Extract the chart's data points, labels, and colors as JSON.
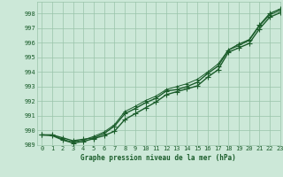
{
  "title": "Graphe pression niveau de la mer (hPa)",
  "xlim": [
    -0.5,
    23
  ],
  "ylim": [
    989,
    998.8
  ],
  "yticks": [
    989,
    990,
    991,
    992,
    993,
    994,
    995,
    996,
    997,
    998
  ],
  "xticks": [
    0,
    1,
    2,
    3,
    4,
    5,
    6,
    7,
    8,
    9,
    10,
    11,
    12,
    13,
    14,
    15,
    16,
    17,
    18,
    19,
    20,
    21,
    22,
    23
  ],
  "background_color": "#cce8d8",
  "grid_color": "#99c4aa",
  "line_color": "#1a5c2a",
  "series1_x": [
    0,
    1,
    2,
    3,
    4,
    5,
    6,
    7,
    8,
    9,
    10,
    11,
    12,
    13,
    14,
    15,
    16,
    17,
    18,
    19,
    20,
    21,
    22,
    23
  ],
  "series1_y": [
    989.7,
    989.7,
    989.5,
    989.3,
    989.4,
    989.5,
    989.8,
    990.3,
    991.15,
    991.5,
    991.9,
    992.2,
    992.7,
    992.8,
    993.0,
    993.3,
    993.9,
    994.4,
    995.5,
    995.9,
    996.2,
    997.2,
    998.0,
    998.3
  ],
  "series2_x": [
    0,
    1,
    2,
    3,
    4,
    5,
    6,
    7,
    8,
    9,
    10,
    11,
    12,
    13,
    14,
    15,
    16,
    17,
    18,
    19,
    20,
    21,
    22,
    23
  ],
  "series2_y": [
    989.7,
    989.65,
    989.35,
    989.15,
    989.25,
    989.45,
    989.65,
    989.95,
    990.75,
    991.15,
    991.55,
    991.95,
    992.45,
    992.65,
    992.85,
    993.05,
    993.65,
    994.15,
    995.35,
    995.65,
    995.95,
    996.95,
    997.75,
    998.05
  ],
  "series3_x": [
    0,
    1,
    2,
    3,
    4,
    5,
    6,
    7,
    8,
    9,
    10,
    11,
    12,
    13,
    14,
    15,
    16,
    17,
    18,
    19,
    20,
    21,
    22,
    23
  ],
  "series3_y": [
    989.7,
    989.7,
    989.4,
    989.2,
    989.35,
    989.6,
    989.9,
    990.4,
    991.3,
    991.65,
    992.05,
    992.35,
    992.8,
    993.0,
    993.2,
    993.5,
    994.0,
    994.55,
    995.5,
    995.8,
    996.15,
    997.15,
    997.9,
    998.2
  ],
  "line_width": 1.0,
  "marker_size": 2.5,
  "tick_fontsize": 5.0,
  "xlabel_fontsize": 5.5
}
